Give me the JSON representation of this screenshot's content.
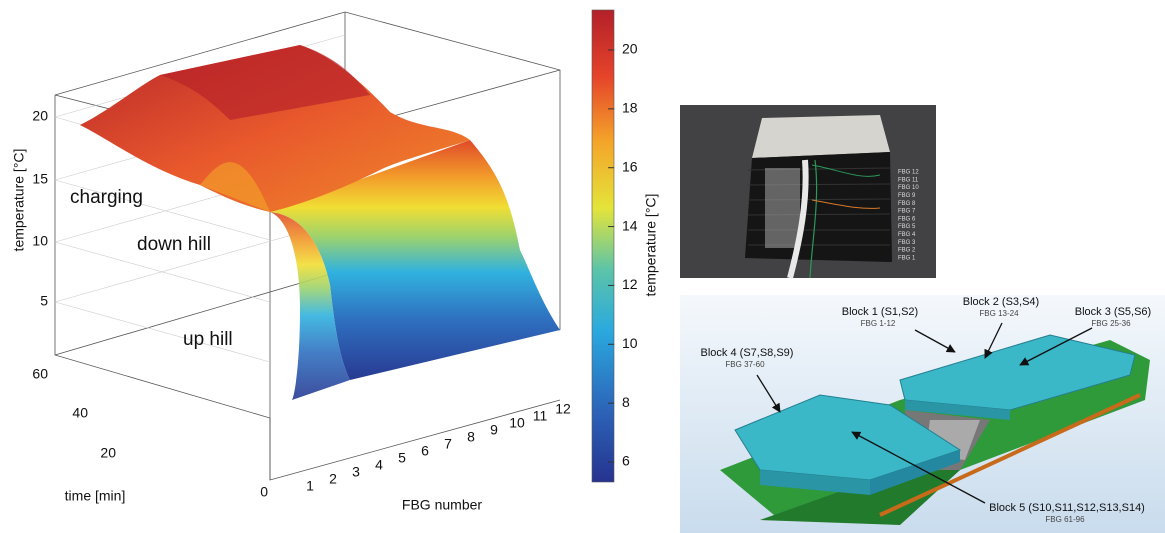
{
  "surface_plot": {
    "z_label": "temperature [°C]",
    "z_ticks": [
      20,
      15,
      10,
      5
    ],
    "time_label": "time [min]",
    "time_ticks": [
      60,
      40,
      20,
      0
    ],
    "fbg_label": "FBG number",
    "fbg_ticks": [
      1,
      2,
      3,
      4,
      5,
      6,
      7,
      8,
      9,
      10,
      11,
      12
    ],
    "annotations": [
      "charging",
      "down hill",
      "up hill"
    ]
  },
  "colorbar": {
    "label": "temperature [°C]",
    "ticks": [
      20,
      18,
      16,
      14,
      12,
      10,
      8,
      6
    ]
  },
  "photo": {
    "fbg_labels": [
      "FBG 12",
      "FBG 11",
      "FBG 10",
      "FBG 9",
      "FBG 8",
      "FBG 7",
      "FBG 6",
      "FBG 5",
      "FBG 4",
      "FBG 3",
      "FBG 2",
      "FBG 1"
    ]
  },
  "cad": {
    "blocks": [
      {
        "name": "Block 1 (S1,S2)",
        "fbg": "FBG 1-12"
      },
      {
        "name": "Block 2 (S3,S4)",
        "fbg": "FBG 13-24"
      },
      {
        "name": "Block 3 (S5,S6)",
        "fbg": "FBG 25-36"
      },
      {
        "name": "Block 4 (S7,S8,S9)",
        "fbg": "FBG 37-60"
      },
      {
        "name": "Block 5 (S10,S11,S12,S13,S14)",
        "fbg": "FBG 61-96"
      }
    ]
  }
}
